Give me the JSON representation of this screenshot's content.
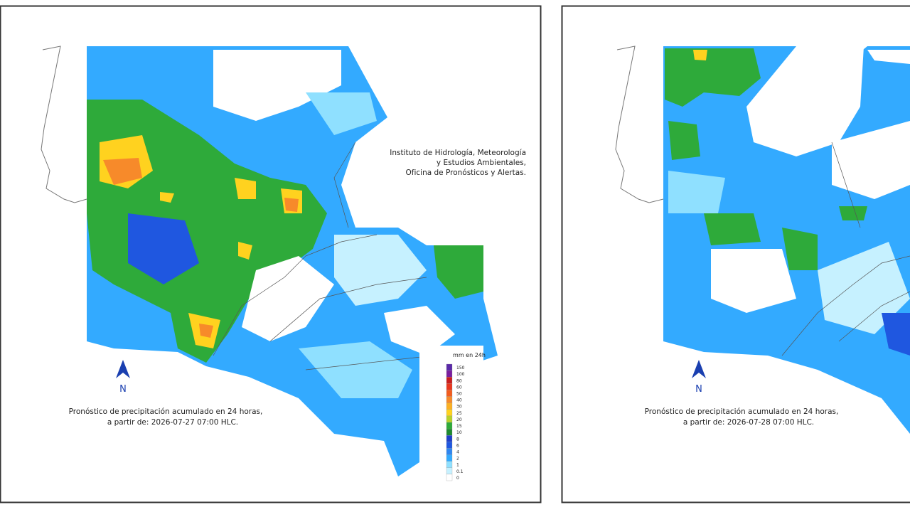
{
  "panels": [
    {
      "institution": [
        "Instituto de Hidrología, Meteorología",
        "y Estudios Ambientales,",
        "Oficina de Pronósticos y Alertas."
      ],
      "north": "N",
      "caption": [
        "Pronóstico de precipitación acumulado en 24 horas,",
        "a partir de: 2026-07-27 07:00 HLC."
      ],
      "legend": {
        "title": "mm en 24h",
        "labels": [
          "150",
          "100",
          "80",
          "60",
          "50",
          "40",
          "30",
          "25",
          "20",
          "15",
          "10",
          "8",
          "6",
          "4",
          "2",
          "1",
          "0.1",
          "0"
        ]
      }
    },
    {
      "north": "N",
      "caption": [
        "Pronóstico de precipitación acumulado en 24 horas,",
        "a partir de: 2026-07-28 07:00 HLC."
      ]
    }
  ]
}
